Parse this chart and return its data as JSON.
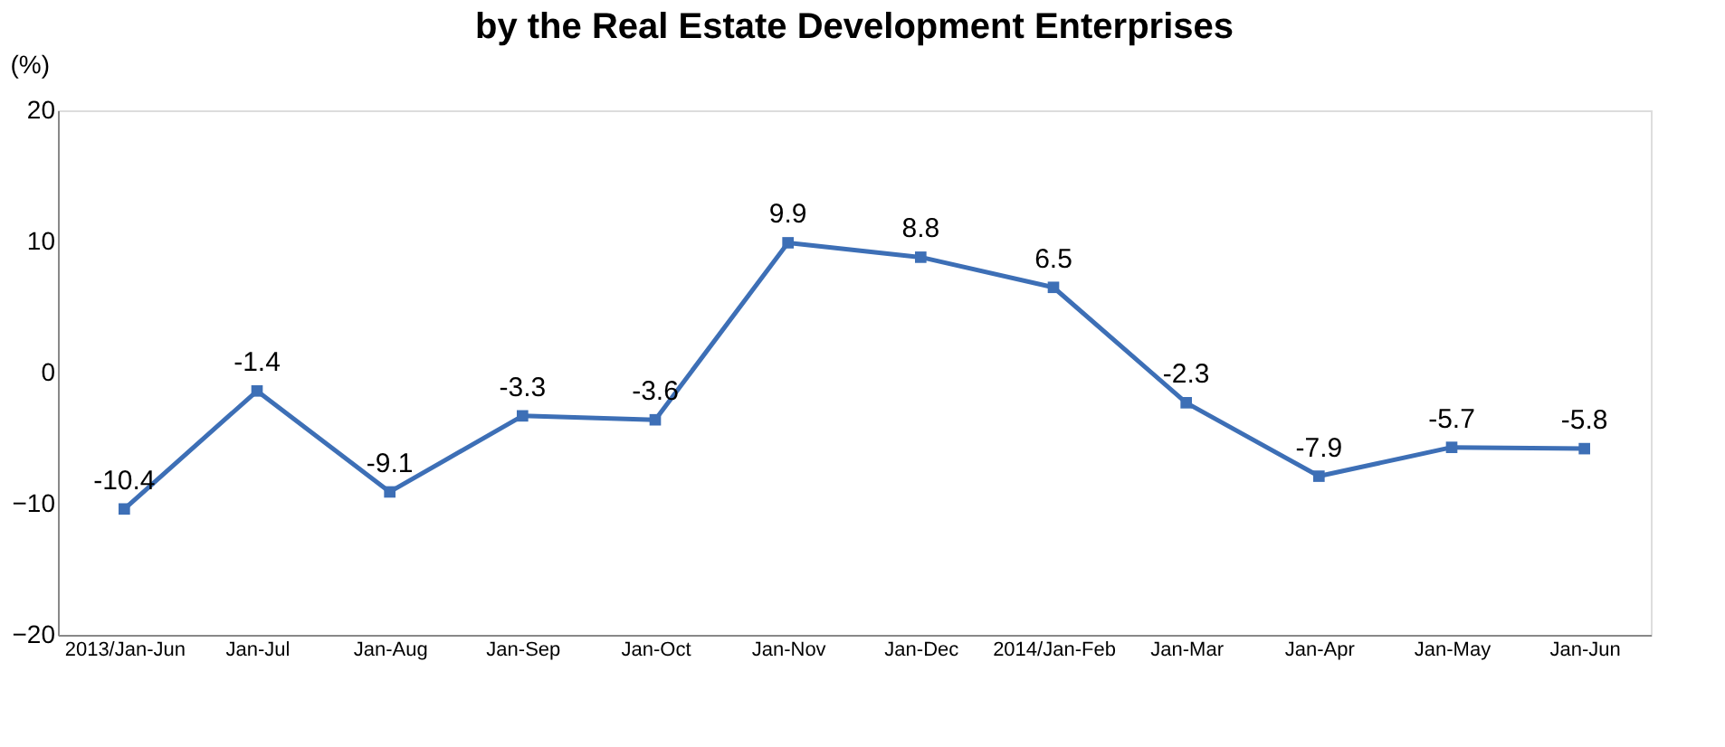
{
  "chart_data": {
    "type": "line",
    "title": "by the Real Estate Development Enterprises",
    "ylabel": "(%)",
    "categories": [
      "2013/Jan-Jun",
      "Jan-Jul",
      "Jan-Aug",
      "Jan-Sep",
      "Jan-Oct",
      "Jan-Nov",
      "Jan-Dec",
      "2014/Jan-Feb",
      "Jan-Mar",
      "Jan-Apr",
      "Jan-May",
      "Jan-Jun"
    ],
    "series": [
      {
        "color": "#3d6fb6",
        "values": [
          -10.4,
          -1.4,
          -9.1,
          -3.3,
          -3.6,
          9.9,
          8.8,
          6.5,
          -2.3,
          -7.9,
          -5.7,
          -5.8
        ]
      }
    ],
    "ylim": [
      -20,
      20
    ],
    "yticks": [
      -20,
      -10,
      0,
      10,
      20
    ],
    "grid": false,
    "marker": "square",
    "line_style": "solid",
    "data_labels": true,
    "legend": false
  }
}
